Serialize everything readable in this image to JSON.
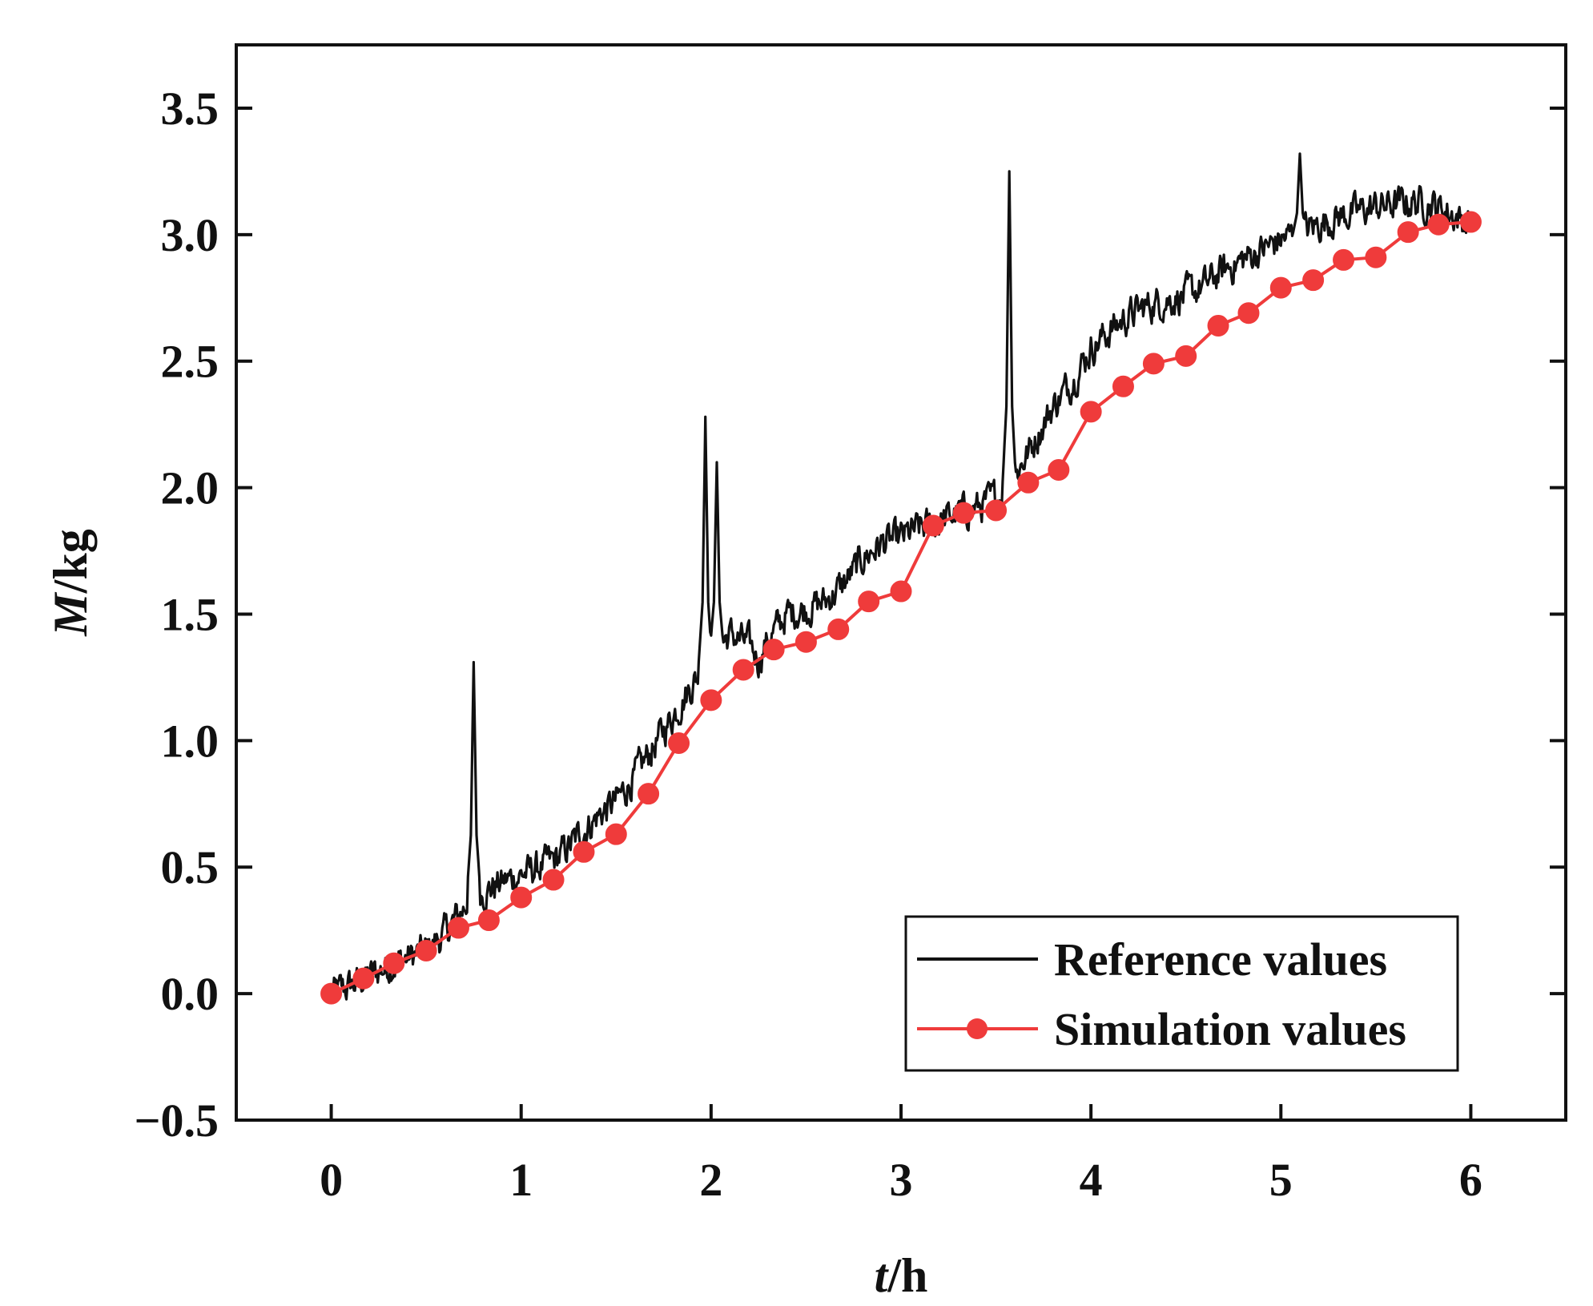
{
  "chart_data": {
    "type": "line",
    "title": "",
    "xlabel": {
      "italic": "t",
      "rest": "/h"
    },
    "ylabel": {
      "italic": "M",
      "rest": "/kg"
    },
    "xlim": [
      -0.5,
      6.5
    ],
    "ylim": [
      -0.5,
      3.75
    ],
    "x_ticks": [
      0,
      1,
      2,
      3,
      4,
      5,
      6
    ],
    "x_tick_labels": [
      "0",
      "1",
      "2",
      "3",
      "4",
      "5",
      "6"
    ],
    "y_ticks": [
      -0.5,
      0.0,
      0.5,
      1.0,
      1.5,
      2.0,
      2.5,
      3.0,
      3.5
    ],
    "y_tick_labels": [
      "−0.5",
      "0.0",
      "0.5",
      "1.0",
      "1.5",
      "2.0",
      "2.5",
      "3.0",
      "3.5"
    ],
    "grid": false,
    "legend_position": "bottom-right",
    "series": [
      {
        "name": "Reference values",
        "color": "#111111",
        "marker": "none",
        "anchors": [
          [
            0.0,
            0.0
          ],
          [
            0.1,
            0.03
          ],
          [
            0.2,
            0.07
          ],
          [
            0.3,
            0.11
          ],
          [
            0.4,
            0.14
          ],
          [
            0.5,
            0.17
          ],
          [
            0.6,
            0.24
          ],
          [
            0.7,
            0.34
          ],
          [
            0.76,
            0.42
          ],
          [
            0.8,
            0.4
          ],
          [
            0.9,
            0.44
          ],
          [
            1.0,
            0.47
          ],
          [
            1.1,
            0.5
          ],
          [
            1.2,
            0.54
          ],
          [
            1.3,
            0.62
          ],
          [
            1.4,
            0.7
          ],
          [
            1.5,
            0.76
          ],
          [
            1.6,
            0.86
          ],
          [
            1.7,
            0.98
          ],
          [
            1.8,
            1.1
          ],
          [
            1.9,
            1.22
          ],
          [
            2.0,
            1.35
          ],
          [
            2.1,
            1.42
          ],
          [
            2.2,
            1.38
          ],
          [
            2.25,
            1.32
          ],
          [
            2.3,
            1.4
          ],
          [
            2.4,
            1.5
          ],
          [
            2.5,
            1.52
          ],
          [
            2.6,
            1.55
          ],
          [
            2.7,
            1.62
          ],
          [
            2.8,
            1.72
          ],
          [
            2.9,
            1.78
          ],
          [
            3.0,
            1.8
          ],
          [
            3.1,
            1.84
          ],
          [
            3.2,
            1.86
          ],
          [
            3.3,
            1.9
          ],
          [
            3.4,
            1.92
          ],
          [
            3.5,
            1.96
          ],
          [
            3.6,
            2.05
          ],
          [
            3.7,
            2.18
          ],
          [
            3.8,
            2.32
          ],
          [
            3.9,
            2.42
          ],
          [
            4.0,
            2.55
          ],
          [
            4.1,
            2.62
          ],
          [
            4.2,
            2.68
          ],
          [
            4.3,
            2.72
          ],
          [
            4.4,
            2.74
          ],
          [
            4.5,
            2.76
          ],
          [
            4.6,
            2.8
          ],
          [
            4.7,
            2.86
          ],
          [
            4.8,
            2.9
          ],
          [
            4.9,
            2.94
          ],
          [
            5.0,
            2.98
          ],
          [
            5.1,
            3.01
          ],
          [
            5.2,
            3.04
          ],
          [
            5.3,
            3.07
          ],
          [
            5.4,
            3.09
          ],
          [
            5.5,
            3.11
          ],
          [
            5.6,
            3.12
          ],
          [
            5.7,
            3.13
          ],
          [
            5.8,
            3.12
          ],
          [
            5.9,
            3.08
          ],
          [
            6.0,
            3.04
          ]
        ],
        "noise_amplitude": 0.06,
        "spikes": [
          {
            "x": 0.75,
            "y": 1.31
          },
          {
            "x": 1.97,
            "y": 2.28
          },
          {
            "x": 2.03,
            "y": 2.1
          },
          {
            "x": 3.57,
            "y": 3.25
          },
          {
            "x": 5.1,
            "y": 3.32
          }
        ]
      },
      {
        "name": "Simulation values",
        "color": "#ef3b3b",
        "marker": "circle",
        "x": [
          0.0,
          0.17,
          0.33,
          0.5,
          0.67,
          0.83,
          1.0,
          1.17,
          1.33,
          1.5,
          1.67,
          1.83,
          2.0,
          2.17,
          2.33,
          2.5,
          2.67,
          2.83,
          3.0,
          3.17,
          3.33,
          3.5,
          3.67,
          3.83,
          4.0,
          4.17,
          4.33,
          4.5,
          4.67,
          4.83,
          5.0,
          5.17,
          5.33,
          5.5,
          5.67,
          5.83,
          6.0
        ],
        "y": [
          0.0,
          0.06,
          0.12,
          0.17,
          0.26,
          0.29,
          0.38,
          0.45,
          0.56,
          0.63,
          0.79,
          0.99,
          1.16,
          1.28,
          1.36,
          1.39,
          1.44,
          1.55,
          1.59,
          1.85,
          1.9,
          1.91,
          2.02,
          2.07,
          2.3,
          2.4,
          2.49,
          2.52,
          2.64,
          2.69,
          2.79,
          2.82,
          2.9,
          2.91,
          3.01,
          3.04,
          3.05
        ]
      }
    ]
  }
}
